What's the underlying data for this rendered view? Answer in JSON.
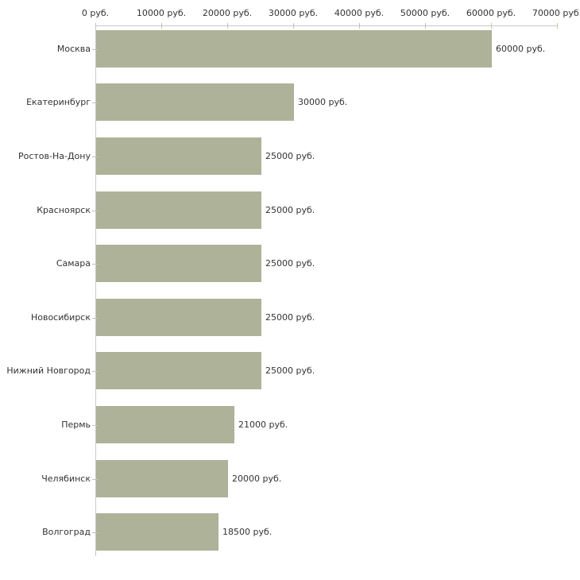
{
  "chart_data": {
    "type": "bar",
    "orientation": "horizontal",
    "title": "",
    "xlabel": "",
    "ylabel": "",
    "categories": [
      "Москва",
      "Екатеринбург",
      "Ростов-На-Дону",
      "Красноярск",
      "Самара",
      "Новосибирск",
      "Нижний Новгород",
      "Пермь",
      "Челябинск",
      "Волгоград"
    ],
    "values": [
      60000,
      30000,
      25000,
      25000,
      25000,
      25000,
      25000,
      21000,
      20000,
      18500
    ],
    "value_labels": [
      "60000 руб.",
      "30000 руб.",
      "25000 руб.",
      "25000 руб.",
      "25000 руб.",
      "25000 руб.",
      "25000 руб.",
      "21000 руб.",
      "20000 руб.",
      "18500 руб."
    ],
    "x_ticks": [
      0,
      10000,
      20000,
      30000,
      40000,
      50000,
      60000,
      70000
    ],
    "x_tick_labels": [
      "0 руб.",
      "10000 руб.",
      "20000 руб.",
      "30000 руб.",
      "40000 руб.",
      "50000 руб.",
      "60000 руб.",
      "70000 руб."
    ],
    "xlim": [
      0,
      70000
    ],
    "axis_position": "top",
    "grid": false,
    "legend": null,
    "unit": "руб.",
    "colors": {
      "bar_fill": "#adb299",
      "axis_line": "#c9c9c9",
      "tick_mark": "#c5c59e",
      "text": "#333333"
    }
  }
}
